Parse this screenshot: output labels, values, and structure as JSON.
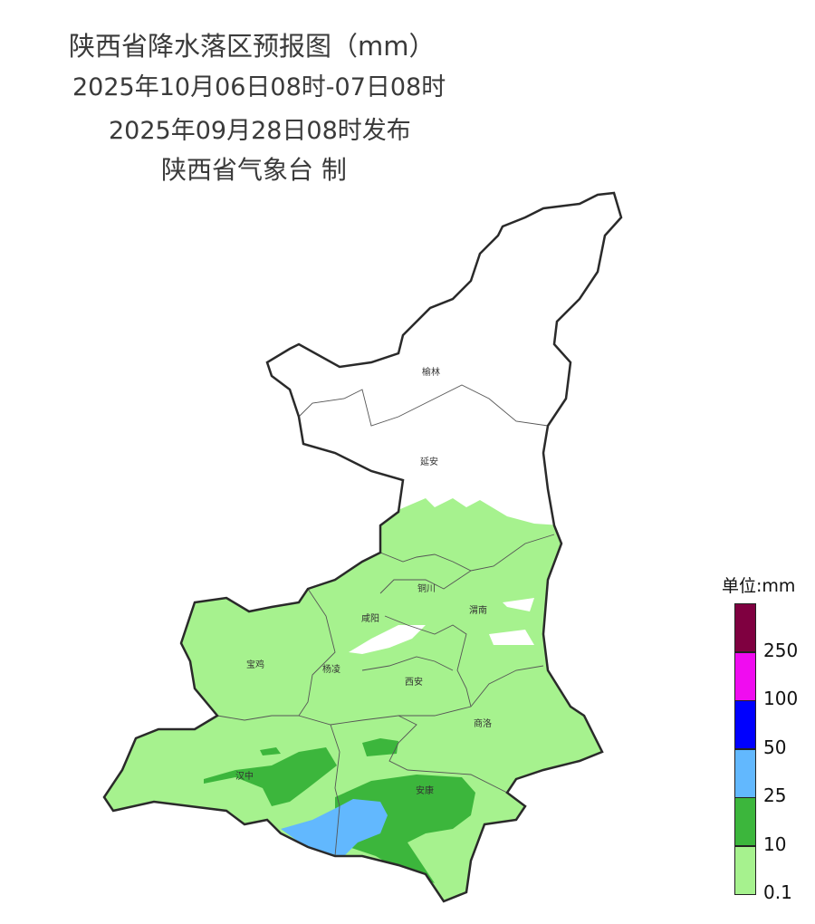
{
  "title": "陕西省降水落区预报图（mm）",
  "period": "2025年10月06日08时-07日08时",
  "issued": "2025年09月28日08时发布",
  "producer": "陕西省气象台 制",
  "cities": [
    "榆林",
    "延安",
    "铜川",
    "渭南",
    "咸阳",
    "宝鸡",
    "杨凌",
    "西安",
    "商洛",
    "汉中",
    "安康"
  ],
  "legend": {
    "unit": "单位:mm",
    "bins": [
      {
        "label": "",
        "color": "#7f0040"
      },
      {
        "label": "250",
        "color": "#f00cf0"
      },
      {
        "label": "100",
        "color": "#0000fe"
      },
      {
        "label": "50",
        "color": "#62b8fe"
      },
      {
        "label": "25",
        "color": "#3cb63c"
      },
      {
        "label": "10",
        "color": "#a6f28e"
      },
      {
        "label": "0.1",
        "color": ""
      }
    ]
  }
}
